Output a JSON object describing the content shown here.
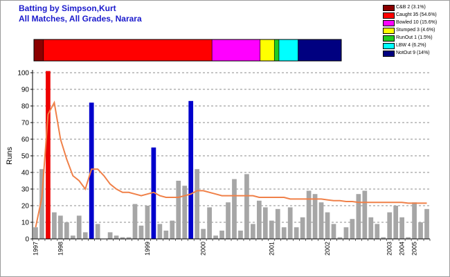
{
  "title_line1": "Batting by Simpson,Kurt",
  "title_line2": "All Matches, All Grades, Narara",
  "colors": {
    "title": "#1a1acc",
    "bar_normal": "#a6a6a6",
    "bar_highlight_caught": "#ee0000",
    "bar_highlight_notout": "#0000cc",
    "trend_line": "#f08048",
    "grid": "#666666"
  },
  "legend": [
    {
      "label": "C&B 2 (3.1%)",
      "color": "#8b0000",
      "pct": 3.1
    },
    {
      "label": "Caught 35 (54.6%)",
      "color": "#ff0000",
      "pct": 54.6
    },
    {
      "label": "Bowled 10 (15.6%)",
      "color": "#ff00ff",
      "pct": 15.6
    },
    {
      "label": "Stumped 3 (4.6%)",
      "color": "#ffff00",
      "pct": 4.6
    },
    {
      "label": "RunOut 1 (1.5%)",
      "color": "#22cc22",
      "pct": 1.5
    },
    {
      "label": "LBW 4 (6.2%)",
      "color": "#00ffff",
      "pct": 6.2
    },
    {
      "label": "NotOut 9 (14%)",
      "color": "#000080",
      "pct": 14
    }
  ],
  "chart_data": {
    "type": "bar",
    "ylabel": "Runs",
    "xlabel": "",
    "ylim": [
      0,
      100
    ],
    "yticks": [
      0,
      10,
      20,
      30,
      40,
      50,
      60,
      70,
      80,
      90,
      100
    ],
    "grid": "horizontal dashed",
    "x_tick_labels": [
      {
        "label": "1997",
        "index": 0
      },
      {
        "label": "1998",
        "index": 4
      },
      {
        "label": "1999",
        "index": 18
      },
      {
        "label": "2000",
        "index": 27
      },
      {
        "label": "2001",
        "index": 38
      },
      {
        "label": "2002",
        "index": 47
      },
      {
        "label": "2003",
        "index": 57
      },
      {
        "label": "2004",
        "index": 59
      },
      {
        "label": "2005",
        "index": 61
      }
    ],
    "series": [
      {
        "name": "Runs",
        "values": [
          7,
          42,
          101,
          16,
          14,
          10,
          2,
          14,
          4,
          82,
          9,
          0,
          4,
          2,
          1,
          1,
          21,
          8,
          20,
          55,
          9,
          5,
          11,
          35,
          32,
          83,
          42,
          6,
          19,
          2,
          5,
          22,
          36,
          5,
          39,
          9,
          23,
          19,
          11,
          18,
          7,
          19,
          7,
          13,
          29,
          27,
          22,
          16,
          9,
          1,
          7,
          12,
          27,
          29,
          13,
          9,
          1,
          16,
          20,
          13,
          1,
          22,
          10,
          18
        ],
        "highlight": {
          "2": "caught",
          "9": "notout",
          "19": "notout",
          "25": "notout"
        }
      },
      {
        "name": "Average",
        "values": [
          7,
          25,
          75,
          82,
          60,
          48,
          38,
          35,
          30,
          42,
          42,
          38,
          33,
          30,
          28,
          28,
          27,
          26,
          27,
          28,
          26,
          25,
          25,
          25,
          26,
          27,
          29,
          29,
          28,
          27,
          26,
          26,
          26,
          26,
          26,
          26,
          25,
          25,
          25,
          25,
          25,
          24,
          24,
          24,
          24,
          24,
          24,
          23.5,
          23,
          23,
          22.5,
          22.5,
          22,
          22,
          22,
          22,
          22,
          22,
          22,
          22,
          21.5,
          21.5,
          21.5,
          21.5
        ]
      }
    ]
  }
}
